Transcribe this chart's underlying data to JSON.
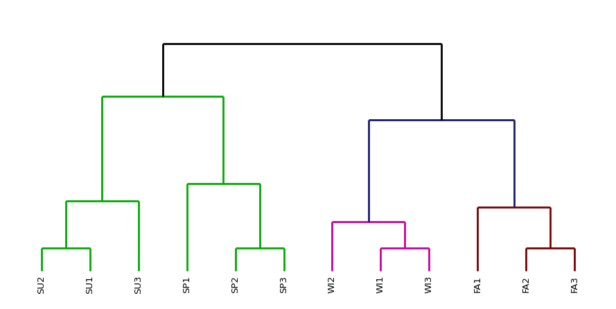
{
  "labels": [
    "SU2",
    "SU1",
    "SU3",
    "SP1",
    "SP2",
    "SP3",
    "WI2",
    "WI1",
    "WI3",
    "FA1",
    "FA2",
    "FA3"
  ],
  "x_positions": [
    1,
    2,
    3,
    4,
    5,
    6,
    7,
    8,
    9,
    10,
    11,
    12
  ],
  "background_color": "#ffffff",
  "label_fontsize": 9.5,
  "linewidth": 2.0,
  "colors": {
    "root": "#000000",
    "summer_spring": "#00aa00",
    "winter": "#cc0099",
    "fall": "#7b0000",
    "right_cluster": "#1a1a6e"
  },
  "heights": {
    "su2_su1": 0.08,
    "su_grp_su3": 0.24,
    "sp2_sp3": 0.08,
    "sp1_spgrp": 0.3,
    "su_sp": 0.6,
    "wi1_wi3": 0.08,
    "wi2_wigrp": 0.17,
    "fa2_fa3": 0.08,
    "fa1_fagrp": 0.22,
    "wi_fa": 0.52,
    "root": 0.78
  }
}
